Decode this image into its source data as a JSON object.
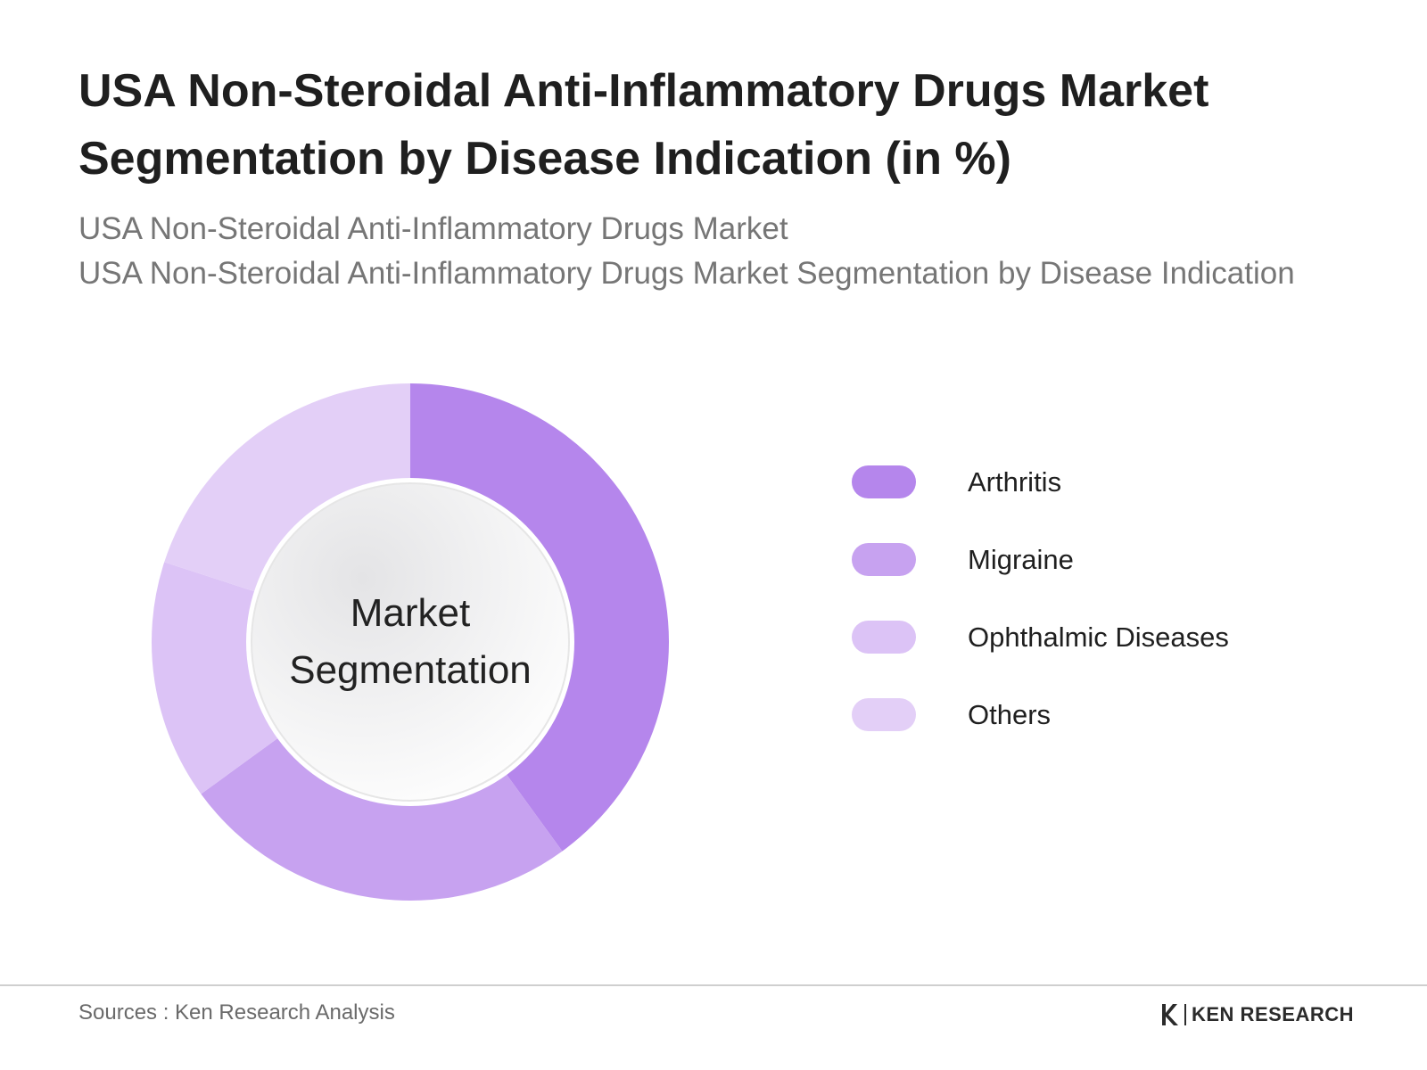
{
  "title": "USA Non-Steroidal Anti-Inflammatory Drugs Market Segmentation by Disease Indication (in %)",
  "subtitle_lines": [
    "USA Non-Steroidal Anti-Inflammatory Drugs Market",
    "USA Non-Steroidal Anti-Inflammatory Drugs Market Segmentation by Disease Indication"
  ],
  "center_label": [
    "Market",
    "Segmentation"
  ],
  "chart_data": {
    "type": "pie",
    "style": "donut",
    "categories": [
      "Arthritis",
      "Migraine",
      "Ophthalmic Diseases",
      "Others"
    ],
    "values": [
      40,
      25,
      15,
      20
    ],
    "unit": "%",
    "colors": [
      "#b586ec",
      "#c7a2f0",
      "#dcc3f6",
      "#e3cff7"
    ],
    "legend_position": "right",
    "start_angle": "12 o'clock",
    "direction": "clockwise"
  },
  "footer": {
    "source": "Sources : Ken Research Analysis",
    "brand": "KEN RESEARCH"
  }
}
